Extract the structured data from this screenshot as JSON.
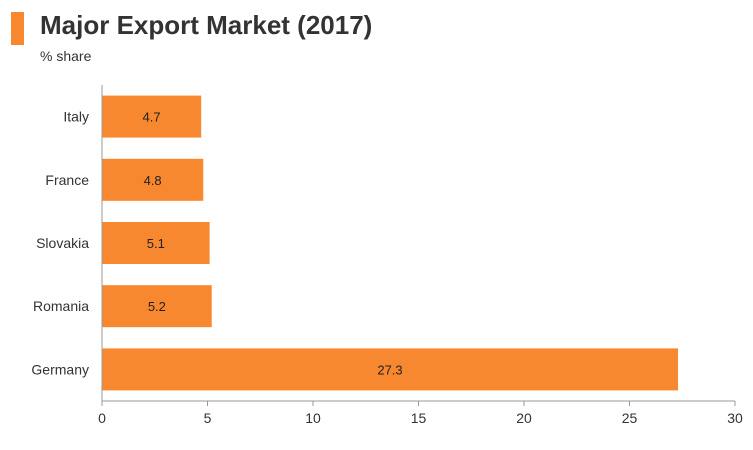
{
  "header": {
    "title": "Major Export Market (2017)",
    "subtitle": "% share"
  },
  "colors": {
    "accent": "#F7882F",
    "bar": "#F7882F",
    "axis": "#999999",
    "text": "#333333"
  },
  "chart_data": {
    "type": "bar",
    "orientation": "horizontal",
    "title": "Major Export Market (2017)",
    "subtitle": "% share",
    "categories": [
      "Italy",
      "France",
      "Slovakia",
      "Romania",
      "Germany"
    ],
    "values": [
      4.7,
      4.8,
      5.1,
      5.2,
      27.3
    ],
    "value_labels": [
      "4.7",
      "4.8",
      "5.1",
      "5.2",
      "27.3"
    ],
    "xlim": [
      0,
      30
    ],
    "xticks": [
      0,
      5,
      10,
      15,
      20,
      25,
      30
    ],
    "xtick_labels": [
      "0",
      "5",
      "10",
      "15",
      "20",
      "25",
      "30"
    ],
    "xlabel": "",
    "ylabel": "",
    "grid": false,
    "legend": "none"
  }
}
